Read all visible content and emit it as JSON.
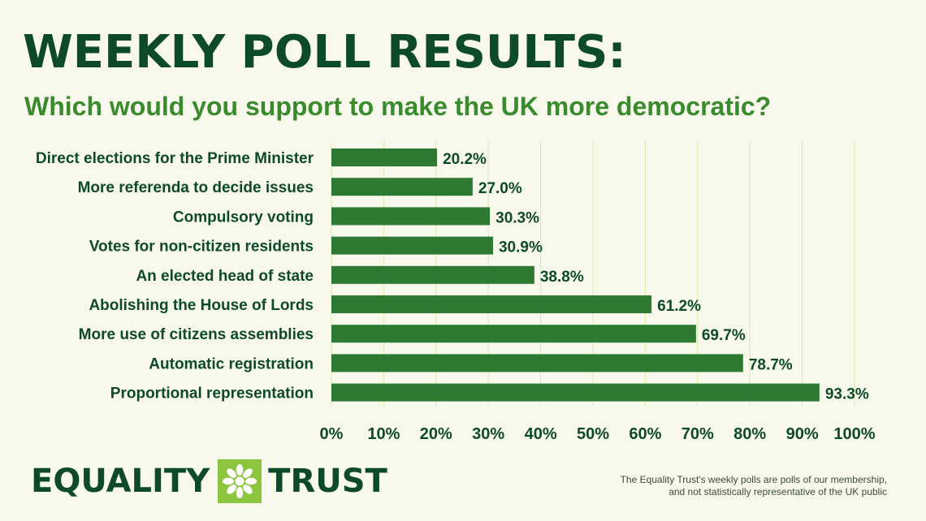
{
  "header": {
    "title": "WEEKLY POLL RESULTS:",
    "subtitle": "Which would you support to make the UK more democratic?"
  },
  "chart_data": {
    "type": "bar",
    "orientation": "horizontal",
    "categories": [
      "Direct elections for the Prime Minister",
      "More referenda to decide issues",
      "Compulsory voting",
      "Votes for non-citizen residents",
      "An elected head of state",
      "Abolishing the House of Lords",
      "More use of citizens assemblies",
      "Automatic registration",
      "Proportional representation"
    ],
    "values": [
      20.2,
      27.0,
      30.3,
      30.9,
      38.8,
      61.2,
      69.7,
      78.7,
      93.3
    ],
    "value_labels": [
      "20.2%",
      "27.0%",
      "30.3%",
      "30.9%",
      "38.8%",
      "61.2%",
      "69.7%",
      "78.7%",
      "93.3%"
    ],
    "xlim": [
      0,
      100
    ],
    "x_ticks": [
      "0%",
      "10%",
      "20%",
      "30%",
      "40%",
      "50%",
      "60%",
      "70%",
      "80%",
      "90%",
      "100%"
    ],
    "grid": "vertical",
    "colors": {
      "bar": "#2e7a32",
      "text": "#0d4a2a",
      "grid": "#dde9a6",
      "background": "#f8f9ec"
    }
  },
  "logo": {
    "word1": "EQUALITY",
    "word2": "TRUST",
    "icon": "flower-icon",
    "colors": {
      "tile": "#8cc63f",
      "petal": "#ffffff",
      "text": "#0d4a2a"
    }
  },
  "footnote": {
    "line1": "The Equality Trust's weekly polls are polls of our membership,",
    "line2": "and not statistically representative of the UK public"
  }
}
